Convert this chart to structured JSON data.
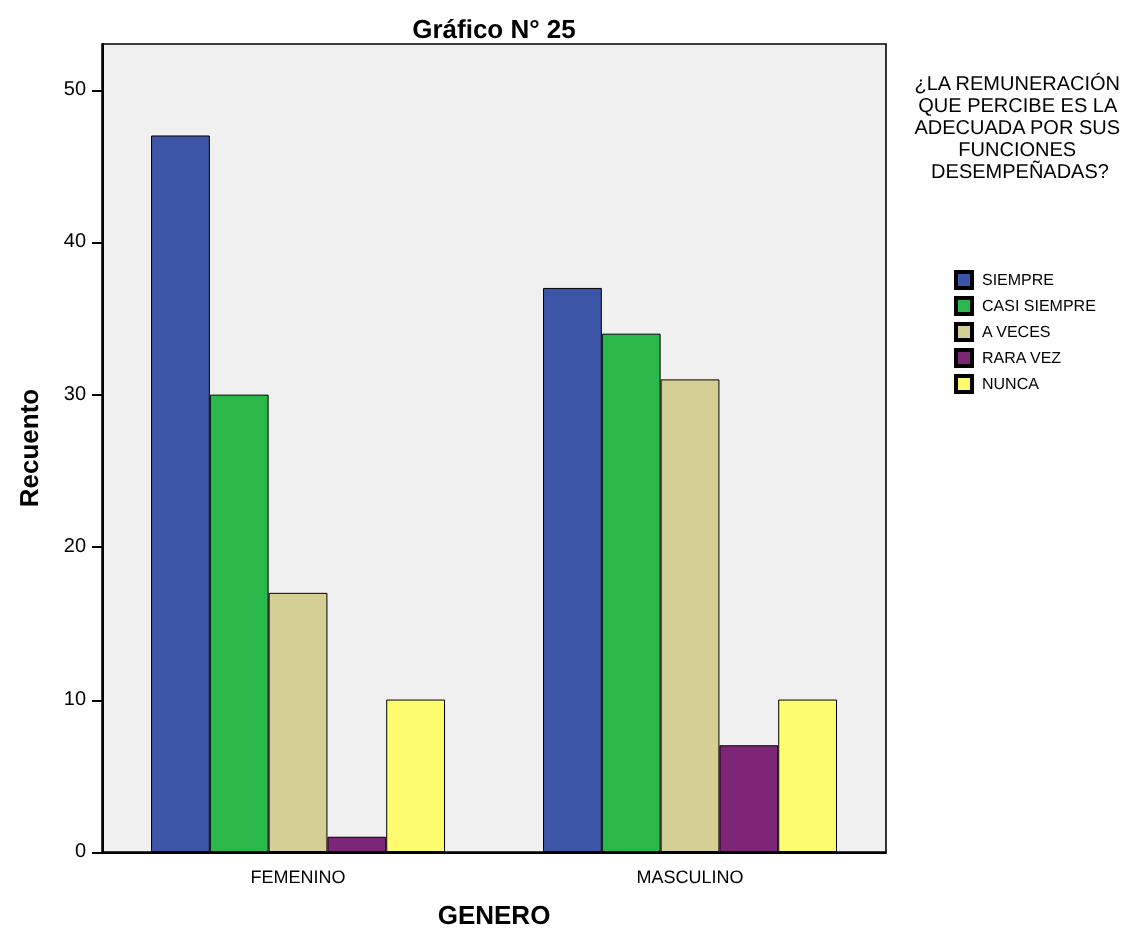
{
  "chart_data": {
    "type": "bar",
    "title": "Gráfico N° 25",
    "xlabel": "GENERO",
    "ylabel": "Recuento",
    "legend_title": "¿LA REMUNERACIÓN QUE PERCIBE ES LA ADECUADA POR SUS FUNCIONES DESEMPEÑADAS?",
    "categories": [
      "FEMENINO",
      "MASCULINO"
    ],
    "series": [
      {
        "name": "SIEMPRE",
        "color": "#3d55a7",
        "values": [
          47,
          37
        ]
      },
      {
        "name": "CASI SIEMPRE",
        "color": "#2ab84a",
        "values": [
          30,
          34
        ]
      },
      {
        "name": "A VECES",
        "color": "#d6cf95",
        "values": [
          17,
          31
        ]
      },
      {
        "name": "RARA VEZ",
        "color": "#7d2577",
        "values": [
          1,
          7
        ]
      },
      {
        "name": "NUNCA",
        "color": "#fcfc6e",
        "values": [
          10,
          10
        ]
      }
    ],
    "ylim": [
      0,
      53
    ],
    "yticks": [
      0,
      10,
      20,
      30,
      40,
      50
    ],
    "grid": false,
    "legend": "right"
  }
}
